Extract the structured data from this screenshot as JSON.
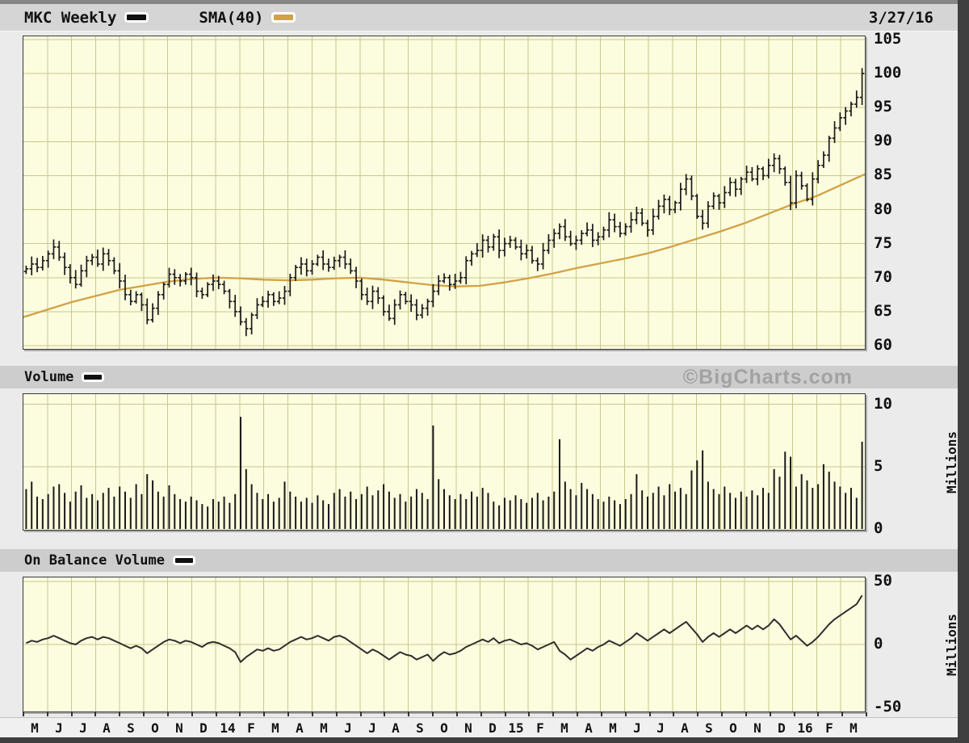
{
  "header": {
    "symbol_label": "MKC Weekly",
    "sma_label": "SMA(40)",
    "date": "3/27/16"
  },
  "volume_section": {
    "label": "Volume",
    "watermark": "©BigCharts.com"
  },
  "obv_section": {
    "label": "On Balance Volume"
  },
  "axes": {
    "price_ticks": [
      105,
      100,
      95,
      90,
      85,
      80,
      75,
      70,
      65,
      60
    ],
    "volume_ticks": [
      10,
      5,
      0
    ],
    "obv_ticks": [
      50,
      0,
      -50
    ],
    "volume_axis_label": "Millions",
    "obv_axis_label": "Millions",
    "x_labels": [
      "M",
      "J",
      "J",
      "A",
      "S",
      "O",
      "N",
      "D",
      "14",
      "F",
      "M",
      "A",
      "M",
      "J",
      "J",
      "A",
      "S",
      "O",
      "N",
      "D",
      "15",
      "F",
      "M",
      "A",
      "M",
      "J",
      "J",
      "A",
      "S",
      "O",
      "N",
      "D",
      "16",
      "F",
      "M"
    ]
  },
  "colors": {
    "page_bg": "#ebebeb",
    "panel_bg": "#fcfcdf",
    "grid": "#c9c98c",
    "ohlc_bar": "#1a1a1a",
    "sma_line": "#d2a245",
    "volume_bar": "#1a1a1a",
    "obv_line": "#2e2e2e",
    "header_bar": "#d5d5d5",
    "section_bar": "#cdcdcd",
    "watermark": "#a2a2a2",
    "swatch_black": "#111111",
    "swatch_gold": "#d2a245"
  },
  "chart_data": [
    {
      "type": "bar",
      "subtype": "ohlc-weekly",
      "title": "MKC Weekly",
      "ylim": [
        60,
        105
      ],
      "grid": true,
      "x_months": [
        "M",
        "J",
        "J",
        "A",
        "S",
        "O",
        "N",
        "D",
        "14",
        "F",
        "M",
        "A",
        "M",
        "J",
        "J",
        "A",
        "S",
        "O",
        "N",
        "D",
        "15",
        "F",
        "M",
        "A",
        "M",
        "J",
        "J",
        "A",
        "S",
        "O",
        "N",
        "D",
        "16",
        "F",
        "M"
      ],
      "series": [
        {
          "name": "MKC weekly close (est.)",
          "values": [
            71.3,
            72.0,
            71.5,
            72.5,
            73.5,
            74.5,
            73.0,
            71.5,
            70.0,
            69.0,
            71.0,
            72.5,
            73.0,
            72.0,
            73.5,
            72.5,
            71.0,
            69.5,
            67.5,
            66.5,
            67.5,
            66.0,
            63.8,
            65.5,
            67.5,
            69.0,
            70.5,
            70.0,
            69.5,
            70.5,
            70.0,
            68.0,
            67.5,
            69.0,
            69.5,
            69.0,
            68.0,
            66.5,
            65.0,
            63.5,
            62.5,
            64.5,
            66.0,
            66.5,
            67.5,
            66.5,
            67.0,
            68.0,
            70.0,
            71.5,
            72.0,
            71.0,
            72.0,
            73.0,
            72.0,
            71.5,
            72.5,
            73.0,
            72.0,
            71.0,
            69.5,
            67.5,
            66.5,
            68.0,
            67.0,
            65.0,
            64.0,
            66.0,
            67.5,
            66.5,
            66.0,
            64.5,
            65.5,
            66.5,
            68.0,
            69.5,
            70.0,
            69.0,
            69.5,
            70.0,
            72.5,
            73.5,
            74.0,
            75.5,
            74.5,
            76.0,
            74.0,
            75.0,
            75.5,
            74.5,
            73.5,
            74.0,
            72.5,
            72.0,
            74.0,
            75.5,
            76.5,
            77.5,
            76.0,
            75.0,
            75.5,
            76.5,
            77.0,
            75.5,
            76.0,
            77.0,
            78.5,
            77.5,
            76.5,
            77.5,
            78.5,
            79.5,
            78.0,
            77.0,
            79.0,
            80.5,
            81.5,
            80.0,
            81.0,
            83.0,
            84.5,
            82.0,
            79.0,
            78.0,
            80.5,
            82.0,
            81.0,
            82.5,
            84.0,
            83.0,
            84.5,
            85.5,
            84.5,
            86.0,
            85.0,
            86.5,
            87.5,
            86.0,
            84.0,
            81.0,
            85.0,
            83.5,
            81.5,
            84.5,
            86.5,
            88.0,
            90.5,
            92.0,
            93.5,
            94.5,
            95.5,
            96.5,
            100.0
          ]
        },
        {
          "name": "SMA(40) monthly anchors (est.)",
          "values": [
            64.2,
            65.3,
            66.4,
            67.3,
            68.2,
            68.8,
            69.4,
            69.8,
            70.0,
            69.9,
            69.7,
            69.6,
            69.7,
            69.9,
            70.0,
            69.7,
            69.3,
            68.9,
            68.7,
            68.8,
            69.3,
            69.9,
            70.6,
            71.4,
            72.1,
            72.8,
            73.6,
            74.6,
            75.7,
            76.8,
            78.0,
            79.4,
            80.8,
            82.0,
            83.6,
            85.2
          ]
        }
      ]
    },
    {
      "type": "bar",
      "title": "Volume",
      "ylabel": "Millions",
      "ylim": [
        0,
        10.5
      ],
      "values": [
        3.2,
        3.8,
        2.6,
        2.4,
        2.8,
        3.4,
        3.6,
        2.9,
        2.2,
        3.0,
        3.5,
        2.5,
        2.8,
        2.3,
        2.9,
        3.3,
        2.6,
        3.4,
        3.0,
        2.5,
        3.6,
        2.8,
        4.4,
        3.9,
        3.0,
        2.6,
        3.5,
        2.8,
        2.4,
        2.2,
        2.6,
        2.3,
        2.0,
        1.8,
        2.4,
        2.2,
        2.6,
        2.1,
        2.8,
        9.0,
        4.8,
        3.6,
        2.9,
        2.4,
        2.8,
        2.2,
        2.5,
        3.8,
        3.0,
        2.6,
        2.2,
        2.5,
        2.1,
        2.7,
        2.3,
        2.0,
        2.9,
        3.2,
        2.6,
        3.0,
        2.4,
        2.8,
        3.4,
        2.7,
        3.1,
        3.6,
        3.0,
        2.5,
        2.8,
        2.2,
        2.6,
        3.2,
        2.9,
        2.4,
        8.3,
        4.0,
        3.2,
        2.7,
        2.4,
        2.8,
        2.4,
        3.0,
        2.6,
        3.3,
        2.9,
        2.2,
        1.9,
        2.5,
        2.3,
        2.7,
        2.4,
        2.1,
        2.5,
        2.9,
        2.3,
        2.6,
        3.0,
        7.2,
        3.8,
        3.2,
        2.7,
        3.7,
        3.2,
        2.8,
        2.4,
        2.2,
        2.6,
        2.3,
        2.0,
        2.4,
        2.8,
        4.4,
        3.1,
        2.6,
        2.9,
        3.4,
        2.7,
        3.6,
        3.0,
        3.3,
        2.8,
        4.7,
        5.5,
        6.3,
        3.8,
        3.2,
        2.8,
        3.4,
        2.9,
        2.5,
        3.0,
        2.6,
        3.1,
        2.7,
        3.3,
        2.9,
        4.8,
        4.2,
        6.2,
        5.8,
        3.4,
        4.4,
        3.9,
        3.3,
        3.6,
        5.2,
        4.6,
        3.8,
        3.4,
        2.9,
        3.3,
        2.5,
        7.0
      ]
    },
    {
      "type": "line",
      "title": "On Balance Volume",
      "ylabel": "Millions",
      "ylim": [
        -50,
        50
      ],
      "values": [
        1,
        3,
        2,
        4,
        5,
        7,
        5,
        3,
        1,
        0,
        3,
        5,
        6,
        4,
        6,
        5,
        3,
        1,
        -1,
        -3,
        -1,
        -3,
        -7,
        -4,
        -1,
        2,
        4,
        3,
        1,
        3,
        2,
        0,
        -2,
        1,
        2,
        1,
        -1,
        -3,
        -6,
        -14,
        -10,
        -7,
        -4,
        -5,
        -3,
        -5,
        -4,
        -1,
        2,
        4,
        6,
        4,
        5,
        7,
        5,
        3,
        6,
        7,
        5,
        2,
        -1,
        -4,
        -7,
        -4,
        -6,
        -9,
        -12,
        -9,
        -6,
        -8,
        -9,
        -12,
        -10,
        -8,
        -13,
        -9,
        -6,
        -8,
        -7,
        -5,
        -2,
        0,
        2,
        4,
        2,
        5,
        1,
        3,
        4,
        2,
        0,
        1,
        -1,
        -4,
        -2,
        0,
        2,
        -5,
        -8,
        -12,
        -9,
        -6,
        -3,
        -5,
        -2,
        0,
        3,
        1,
        -1,
        2,
        5,
        9,
        6,
        3,
        6,
        9,
        12,
        9,
        12,
        15,
        18,
        13,
        8,
        2,
        6,
        9,
        6,
        9,
        12,
        9,
        12,
        15,
        12,
        15,
        12,
        15,
        20,
        16,
        10,
        4,
        7,
        3,
        -1,
        2,
        6,
        11,
        16,
        20,
        23,
        26,
        29,
        32,
        39
      ]
    }
  ]
}
